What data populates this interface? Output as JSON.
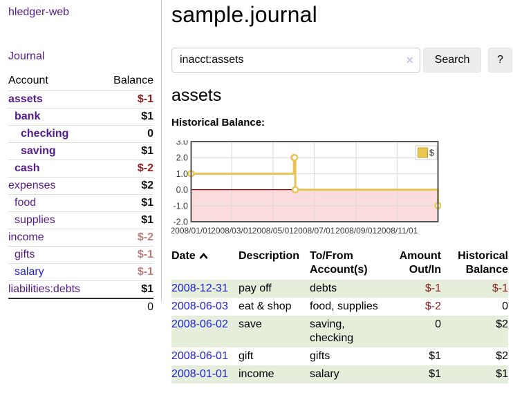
{
  "app": {
    "title": "hledger-web"
  },
  "nav": {
    "journal": "Journal"
  },
  "sidebar": {
    "header": {
      "account": "Account",
      "balance": "Balance"
    },
    "accounts": [
      {
        "name": "assets",
        "balance": "$-1",
        "indent": 0,
        "bold": true,
        "link": "purple",
        "value_style": "neg-strong"
      },
      {
        "name": "bank",
        "balance": "$1",
        "indent": 1,
        "bold": true,
        "link": "purple",
        "value_style": "pos"
      },
      {
        "name": "checking",
        "balance": "0",
        "indent": 2,
        "bold": true,
        "link": "purple",
        "value_style": "pos"
      },
      {
        "name": "saving",
        "balance": "$1",
        "indent": 2,
        "bold": true,
        "link": "purple",
        "value_style": "pos"
      },
      {
        "name": "cash",
        "balance": "$-2",
        "indent": 1,
        "bold": true,
        "link": "purple",
        "value_style": "neg-strong"
      },
      {
        "name": "expenses",
        "balance": "$2",
        "indent": 0,
        "bold": false,
        "link": "purple",
        "value_style": "pos"
      },
      {
        "name": "food",
        "balance": "$1",
        "indent": 1,
        "bold": false,
        "link": "purple",
        "value_style": "pos"
      },
      {
        "name": "supplies",
        "balance": "$1",
        "indent": 1,
        "bold": false,
        "link": "purple",
        "value_style": "pos"
      },
      {
        "name": "income",
        "balance": "$-2",
        "indent": 0,
        "bold": false,
        "link": "purple",
        "value_style": "neg-soft"
      },
      {
        "name": "gifts",
        "balance": "$-1",
        "indent": 1,
        "bold": false,
        "link": "purple",
        "value_style": "neg-soft"
      },
      {
        "name": "salary",
        "balance": "$-1",
        "indent": 1,
        "bold": false,
        "link": "blue",
        "value_style": "neg-soft"
      },
      {
        "name": "liabilities:debts",
        "balance": "$1",
        "indent": 0,
        "bold": false,
        "link": "purple",
        "value_style": "pos"
      }
    ],
    "total": "0"
  },
  "main": {
    "title": "sample.journal",
    "search": {
      "value": "inacct:assets",
      "clear": "×",
      "button_label": "Search",
      "help_label": "?"
    },
    "account_title": "assets",
    "chart_label": "Historical Balance:"
  },
  "chart_data": {
    "type": "line",
    "step": true,
    "title": "Historical Balance",
    "series": [
      {
        "name": "$",
        "color": "#e8c353",
        "points": [
          [
            "2008-01-01",
            1
          ],
          [
            "2008-06-01",
            2
          ],
          [
            "2008-06-02",
            2
          ],
          [
            "2008-06-03",
            0
          ],
          [
            "2008-12-31",
            -1
          ]
        ]
      }
    ],
    "x_ticks": [
      {
        "label": "2008/01/01",
        "date": "2008-01-01"
      },
      {
        "label": "2008/03/01",
        "date": "2008-03-01"
      },
      {
        "label": "2008/05/01",
        "date": "2008-05-01"
      },
      {
        "label": "2008/07/01",
        "date": "2008-07-01"
      },
      {
        "label": "2008/09/01",
        "date": "2008-09-01"
      },
      {
        "label": "2008/11/01",
        "date": "2008-11-01"
      }
    ],
    "y_ticks": [
      "3.0",
      "2.0",
      "1.0",
      "0.0",
      "-1.0",
      "-2.0"
    ],
    "xlim": [
      "2008-01-01",
      "2008-12-31"
    ],
    "ylim": [
      -2,
      3
    ],
    "grid": true,
    "legend_position": "top-right",
    "legend_label": "$",
    "colors": {
      "line": "#e8c353",
      "marker_fill": "#ffffff",
      "legend_square": "#eac54f",
      "legend_square_border": "#bda135",
      "negative_region": "#fadcdd",
      "zero_line": "#800000",
      "gridline": "#d8d8d8",
      "plot_border": "#545454",
      "tick_text": "#3a3a3a"
    }
  },
  "register": {
    "columns": [
      {
        "label": "Date",
        "align": "left",
        "sorted": "asc"
      },
      {
        "label": "Description",
        "align": "left"
      },
      {
        "label": "To/From Account(s)",
        "align": "left"
      },
      {
        "label": "Amount Out/In",
        "align": "right"
      },
      {
        "label": "Historical Balance",
        "align": "right"
      }
    ],
    "rows": [
      {
        "date": "2008-12-31",
        "description": "pay off",
        "accounts": "debts",
        "amount": "$-1",
        "balance": "$-1",
        "amount_negative": true,
        "balance_negative": true
      },
      {
        "date": "2008-06-03",
        "description": "eat & shop",
        "accounts": "food, supplies",
        "amount": "$-2",
        "balance": "0",
        "amount_negative": true,
        "balance_negative": false
      },
      {
        "date": "2008-06-02",
        "description": "save",
        "accounts": "saving, checking",
        "amount": "0",
        "balance": "$2",
        "amount_negative": false,
        "balance_negative": false
      },
      {
        "date": "2008-06-01",
        "description": "gift",
        "accounts": "gifts",
        "amount": "$1",
        "balance": "$2",
        "amount_negative": false,
        "balance_negative": false
      },
      {
        "date": "2008-01-01",
        "description": "income",
        "accounts": "salary",
        "amount": "$1",
        "balance": "$1",
        "amount_negative": false,
        "balance_negative": false
      }
    ]
  }
}
